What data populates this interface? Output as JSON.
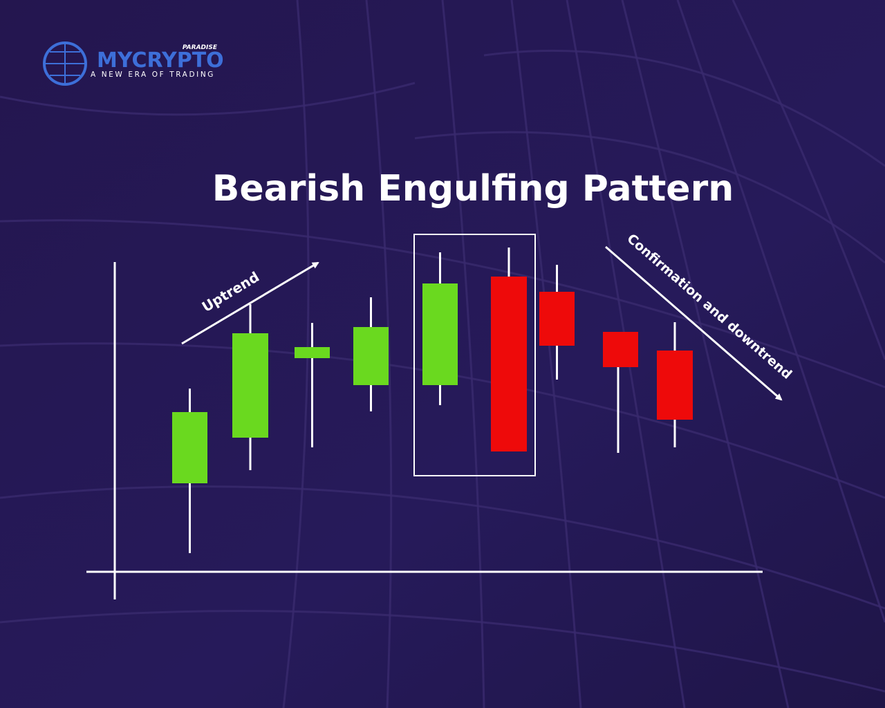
{
  "logo": {
    "brand": "MYCRYPTO",
    "sub_brand": "PARADISE",
    "tagline": "A NEW ERA OF TRADING"
  },
  "title": "Bearish Engulfing Pattern",
  "annotations": {
    "uptrend": "Uptrend",
    "downtrend": "Confirmation and downtrend"
  }
}
